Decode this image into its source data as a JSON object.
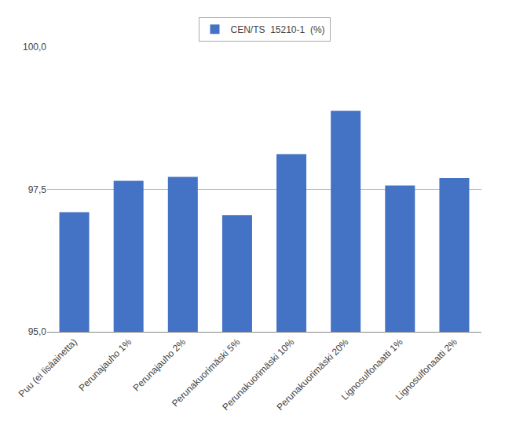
{
  "chart_data": {
    "type": "bar",
    "categories": [
      "Puu (ei lisäainetta)",
      "Perunajauho 1%",
      "Perunajauho 2%",
      "Perunakuorimäski 5%",
      "Perunakuorimäski 10%",
      "Perunakuorimäski 20%",
      "Lignosulfonaatti 1%",
      "Lignosulfonaatti 2%"
    ],
    "series": [
      {
        "name": "CEN/TS  15210-1  (%)",
        "color": "#4472C4",
        "values": [
          97.1,
          97.65,
          97.72,
          97.05,
          98.12,
          98.88,
          97.57,
          97.7
        ]
      }
    ],
    "ylim": [
      95.0,
      100.0
    ],
    "yticks": [
      {
        "value": 95.0,
        "label": "95,0"
      },
      {
        "value": 97.5,
        "label": "97,5"
      },
      {
        "value": 100.0,
        "label": "100,0"
      }
    ],
    "grid": true,
    "legend": "top"
  }
}
